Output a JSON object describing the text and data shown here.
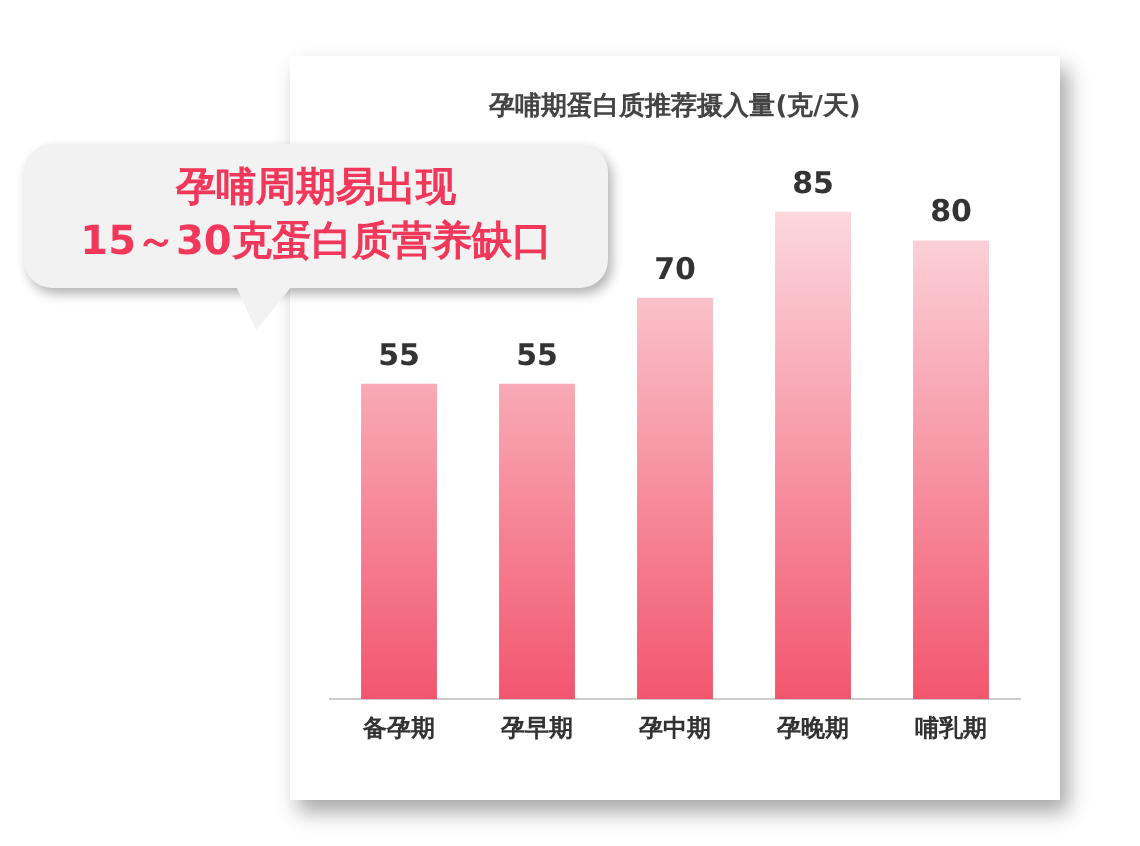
{
  "chart_data": {
    "type": "bar",
    "title": "孕哺期蛋白质推荐摄入量(克/天)",
    "categories": [
      "备孕期",
      "孕早期",
      "孕中期",
      "孕晚期",
      "哺乳期"
    ],
    "values": [
      55,
      55,
      70,
      85,
      80
    ],
    "color": "#f2566e",
    "data_labels": true,
    "grid": false,
    "legend": false,
    "annotations": [
      "孕哺周期易出现\n15～30克蛋白质营养缺口"
    ]
  }
}
